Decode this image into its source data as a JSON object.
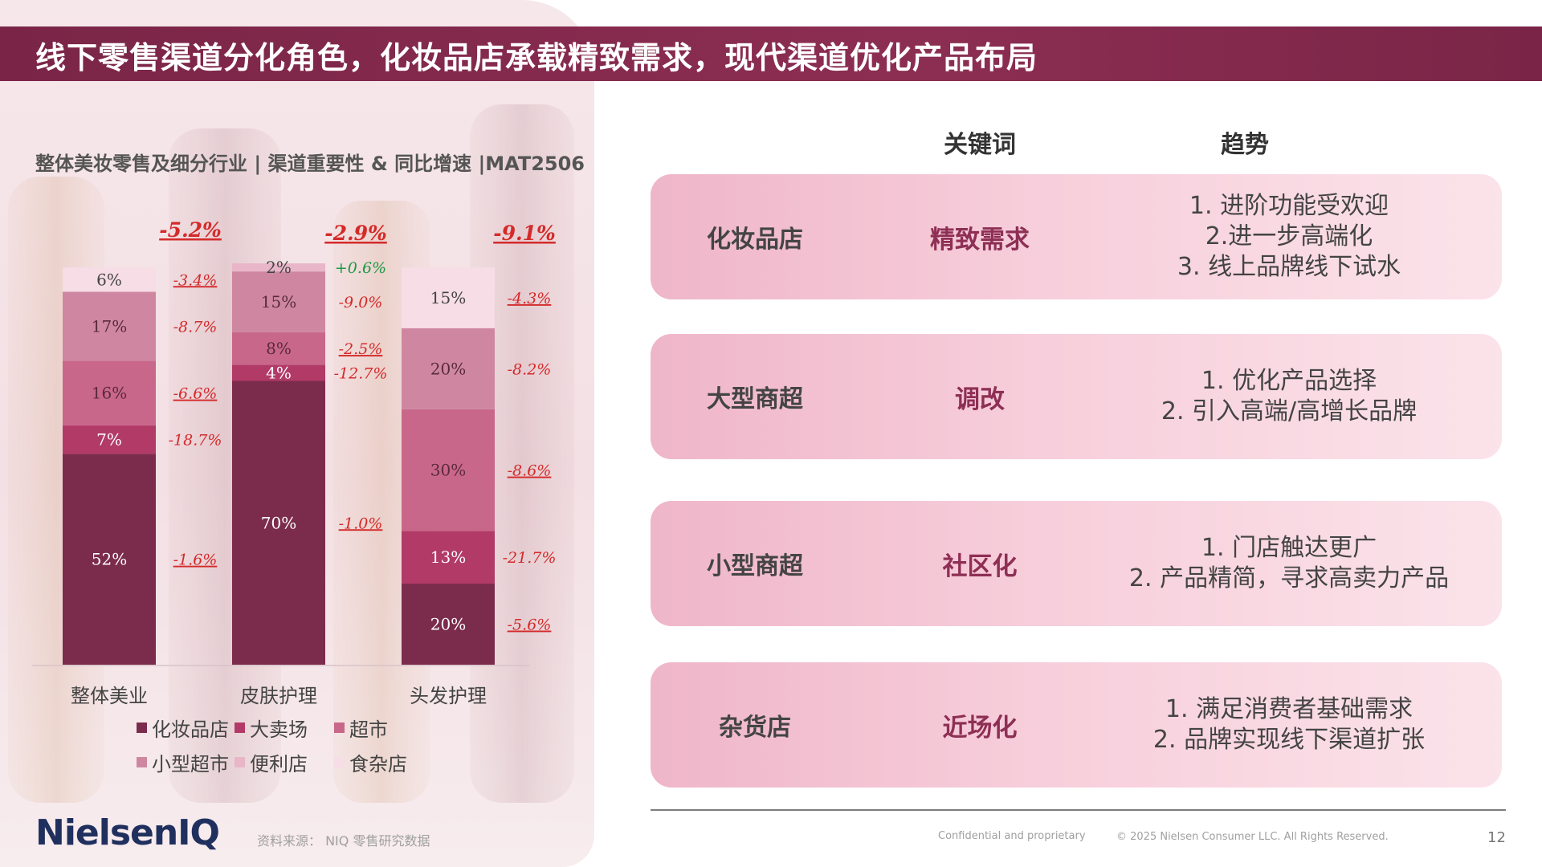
{
  "title": "线下零售渠道分化角色，化妆品店承载精致需求，现代渠道优化产品布局",
  "chart": {
    "subtitle": "整体美妆零售及细分行业 | 渠道重要性 & 同比增速 |MAT2506",
    "legend": [
      "化妆品店",
      "大卖场",
      "超市",
      "小型超市",
      "便利店",
      "食杂店"
    ]
  },
  "chart_data": {
    "type": "bar",
    "stacked": true,
    "percent_stacked": true,
    "categories": [
      "整体美业",
      "皮肤护理",
      "头发护理"
    ],
    "totals_yoy": [
      "-5.2%",
      "-2.9%",
      "-9.1%"
    ],
    "series": [
      {
        "name": "化妆品店",
        "color": "#7b2c4c",
        "values": [
          52,
          70,
          20
        ],
        "yoy": [
          "-1.6%",
          "-1.0%",
          "-5.6%"
        ]
      },
      {
        "name": "大卖场",
        "color": "#b23a67",
        "values": [
          7,
          4,
          13
        ],
        "yoy": [
          "-18.7%",
          "-12.7%",
          "-21.7%"
        ]
      },
      {
        "name": "超市",
        "color": "#c9678a",
        "values": [
          16,
          8,
          30
        ],
        "yoy": [
          "-6.6%",
          "-2.5%",
          "-8.6%"
        ]
      },
      {
        "name": "小型超市",
        "color": "#cf87a1",
        "values": [
          17,
          15,
          20
        ],
        "yoy": [
          "-8.7%",
          "-9.0%",
          "-8.2%"
        ]
      },
      {
        "name": "便利店",
        "color": "#e8b6c8",
        "values": [
          0,
          2,
          0
        ],
        "yoy": [
          null,
          "+0.6%",
          null
        ]
      },
      {
        "name": "食杂店",
        "color": "#f6dde6",
        "values": [
          6,
          0,
          15
        ],
        "yoy": [
          "-3.4%",
          null,
          "-4.3%"
        ]
      }
    ],
    "ylim": [
      0,
      100
    ]
  },
  "table": {
    "header_keyword": "关键词",
    "header_trend": "趋势",
    "rows": [
      {
        "channel": "化妆品店",
        "keyword": "精致需求",
        "trends": [
          "1. 进阶功能受欢迎",
          "2.进一步高端化",
          "3. 线上品牌线下试水"
        ]
      },
      {
        "channel": "大型商超",
        "keyword": "调改",
        "trends": [
          "1. 优化产品选择",
          "2. 引入高端/高增长品牌"
        ]
      },
      {
        "channel": "小型商超",
        "keyword": "社区化",
        "trends": [
          "1. 门店触达更广",
          "2. 产品精简，寻求高卖力产品"
        ]
      },
      {
        "channel": "杂货店",
        "keyword": "近场化",
        "trends": [
          "1. 满足消费者基础需求",
          "2. 品牌实现线下渠道扩张"
        ]
      }
    ]
  },
  "footer": {
    "logo": "NielsenIQ",
    "source": "资料来源： NIQ 零售研究数据",
    "confidential": "Confidential and proprietary",
    "copyright": "© 2025 Nielsen Consumer LLC. All Rights Reserved.",
    "page": "12"
  }
}
